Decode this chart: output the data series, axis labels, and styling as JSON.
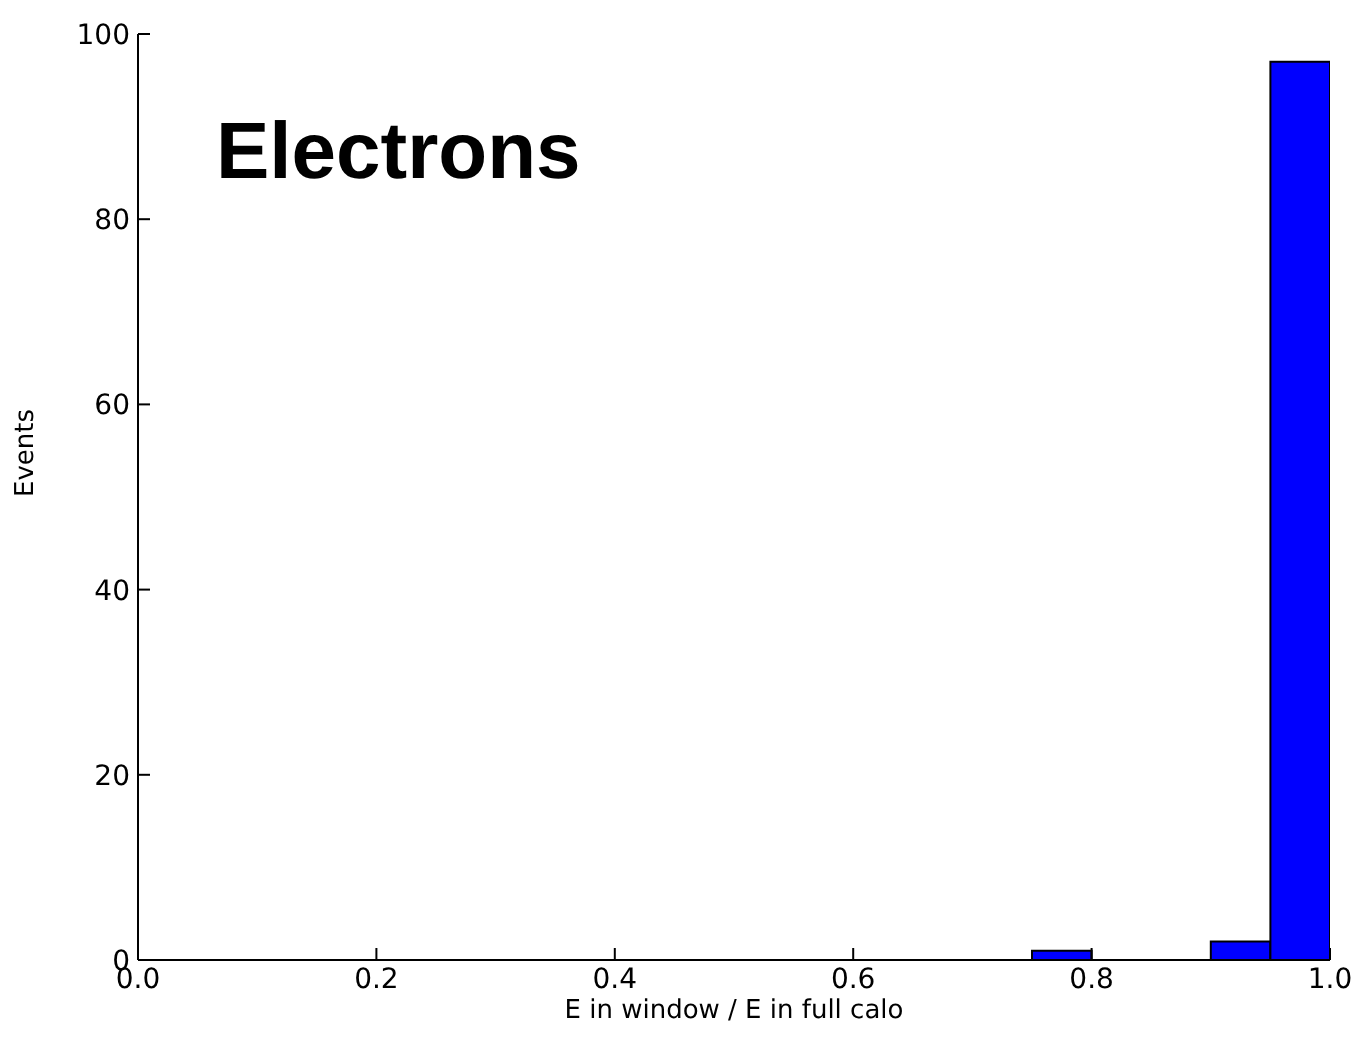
{
  "chart_data": {
    "type": "histogram",
    "xlabel": "E in window / E in full calo",
    "ylabel": "Events",
    "annotations": [
      "Electrons"
    ],
    "bins": [
      0,
      0.05,
      0.1,
      0.15,
      0.2,
      0.25,
      0.3,
      0.35,
      0.4,
      0.45,
      0.5,
      0.55,
      0.6,
      0.65,
      0.7,
      0.75,
      0.8,
      0.85,
      0.9,
      0.95,
      1.0
    ],
    "values": [
      0,
      0,
      0,
      0,
      0,
      0,
      0,
      0,
      0,
      0,
      0,
      0,
      0,
      0,
      0,
      1,
      0,
      0,
      2,
      97
    ],
    "color": "#0000ff",
    "xlim": [
      0,
      1
    ],
    "xticks": [
      {
        "value": 0,
        "label": "0.0"
      },
      {
        "value": 0.2,
        "label": "0.2"
      },
      {
        "value": 0.4,
        "label": "0.4"
      },
      {
        "value": 0.6,
        "label": "0.6"
      },
      {
        "value": 0.8,
        "label": "0.8"
      },
      {
        "value": 1,
        "label": "1.0"
      }
    ],
    "ylim": [
      0,
      100
    ],
    "yticks": [
      0,
      20,
      40,
      60,
      80,
      100
    ]
  }
}
